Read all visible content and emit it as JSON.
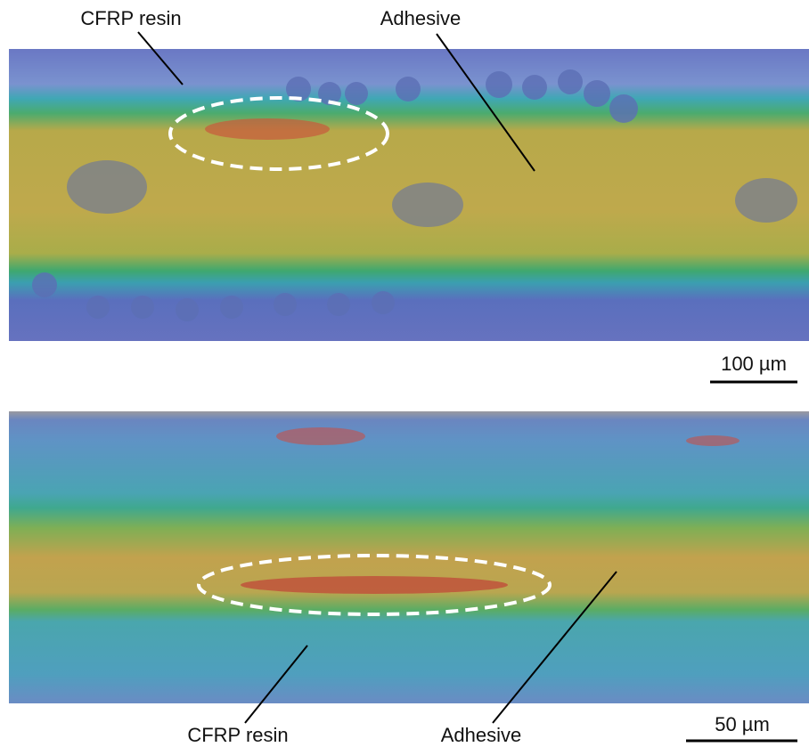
{
  "panels": [
    {
      "labels": [
        "CFRP resin",
        "Adhesive"
      ],
      "scale_bar": "100 µm"
    },
    {
      "labels": [
        "CFRP resin",
        "Adhesive"
      ],
      "scale_bar": "50 µm"
    }
  ]
}
